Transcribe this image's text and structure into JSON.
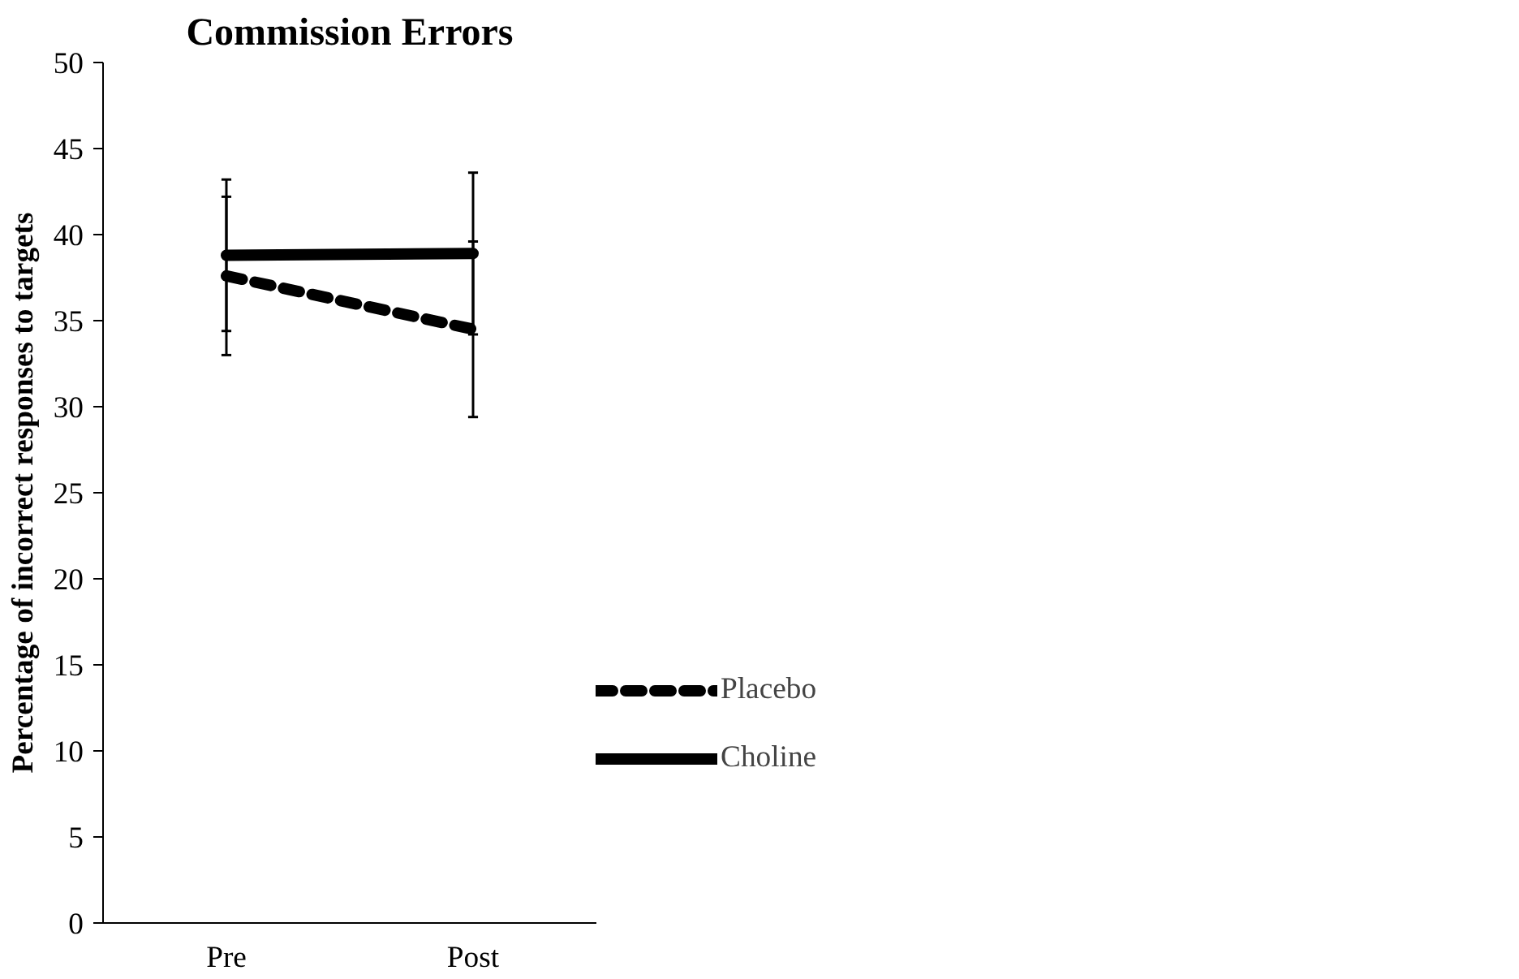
{
  "chart_data": {
    "type": "line",
    "title": "Commission Errors",
    "ylabel": "Percentage of incorrect responses to targets",
    "categories": [
      "Pre",
      "Post"
    ],
    "series": [
      {
        "name": "Placebo",
        "color": "#000000",
        "line_style": "dashed",
        "values": [
          37.6,
          34.5
        ],
        "errors": [
          4.6,
          5.1
        ]
      },
      {
        "name": "Choline",
        "color": "#000000",
        "line_style": "solid",
        "values": [
          38.8,
          38.9
        ],
        "errors": [
          4.4,
          4.7
        ]
      }
    ],
    "ylim": [
      0,
      50
    ],
    "yticks": [
      0,
      5,
      10,
      15,
      20,
      25,
      30,
      35,
      40,
      45,
      50
    ],
    "grid": false,
    "legend": "bottom right",
    "marker": "none"
  }
}
